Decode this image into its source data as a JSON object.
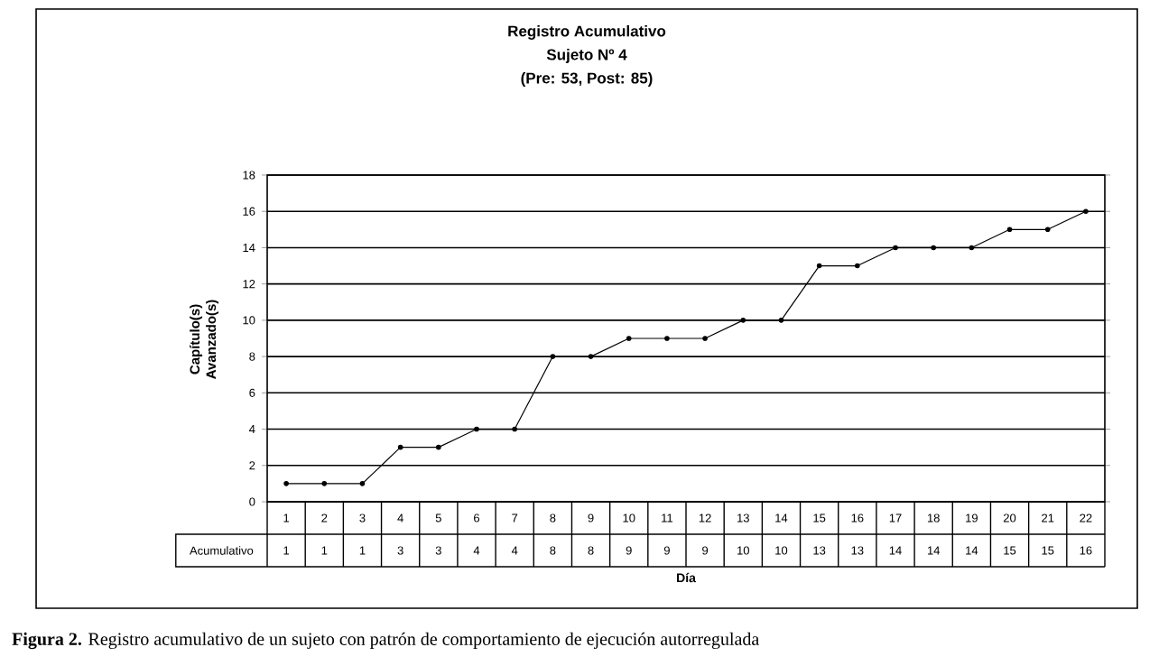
{
  "chart_data": {
    "type": "line",
    "title": "Registro Acumulativo",
    "subtitle": "Sujeto Nº 4",
    "ylabel": "Capítulo(s) Avanzado(s)",
    "xlabel": "Día",
    "annotations": [
      "(Pre: 53, Post: 85)",
      "**Figura 2.** Registro acumulativo de un sujeto con patrón de comportamiento de ejecución autorregulada"
    ],
    "categories": [
      "1",
      "2",
      "3",
      "4",
      "5",
      "6",
      "7",
      "8",
      "9",
      "10",
      "11",
      "12",
      "13",
      "14",
      "15",
      "16",
      "17",
      "18",
      "19",
      "20",
      "21",
      "22"
    ],
    "series": [
      {
        "name": "Acumulativo",
        "color": "#000000",
        "values": [
          1,
          1,
          1,
          3,
          3,
          4,
          4,
          8,
          8,
          9,
          9,
          9,
          10,
          10,
          13,
          13,
          14,
          14,
          14,
          15,
          15,
          16
        ]
      }
    ],
    "ylim": [
      0,
      18
    ],
    "yticks": [
      0,
      2,
      4,
      6,
      8,
      10,
      12,
      14,
      16,
      18
    ],
    "grid": "y",
    "marker": "circle",
    "line_style": "solid",
    "data_labels": true
  }
}
